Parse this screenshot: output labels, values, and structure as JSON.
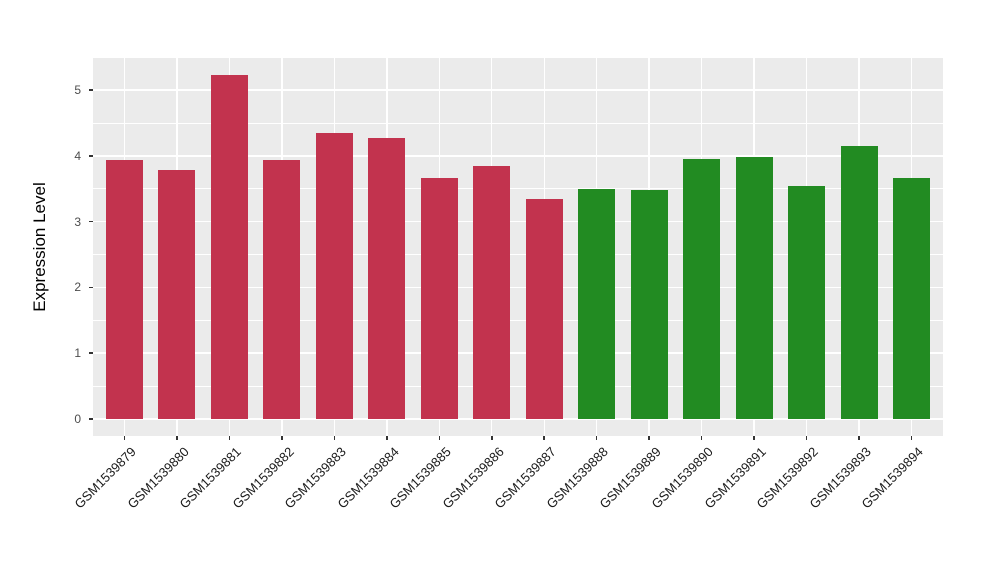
{
  "chart_data": {
    "type": "bar",
    "title": "",
    "xlabel": "",
    "ylabel": "Expression Level",
    "categories": [
      "GSM1539879",
      "GSM1539880",
      "GSM1539881",
      "GSM1539882",
      "GSM1539883",
      "GSM1539884",
      "GSM1539885",
      "GSM1539886",
      "GSM1539887",
      "GSM1539888",
      "GSM1539889",
      "GSM1539890",
      "GSM1539891",
      "GSM1539892",
      "GSM1539893",
      "GSM1539894"
    ],
    "values": [
      3.94,
      3.79,
      5.23,
      3.94,
      4.35,
      4.28,
      3.67,
      3.84,
      3.35,
      3.5,
      3.48,
      3.95,
      3.98,
      3.55,
      4.15,
      3.67
    ],
    "bar_groups": [
      "red",
      "red",
      "red",
      "red",
      "red",
      "red",
      "red",
      "red",
      "red",
      "green",
      "green",
      "green",
      "green",
      "green",
      "green",
      "green"
    ],
    "palette": {
      "red": "#C2334E",
      "green": "#228B22"
    },
    "y_ticks": [
      0,
      1,
      2,
      3,
      4,
      5
    ],
    "y_minor_ticks": [
      0.5,
      1.5,
      2.5,
      3.5,
      4.5
    ],
    "ylim": [
      0,
      5.49
    ],
    "x_tick_angle_deg": 45,
    "legend": "none",
    "style": {
      "panel_bg": "#EBEBEB",
      "grid_color": "#FFFFFF",
      "tick_color": "#333333",
      "y_tick_label_color": "#4D4D4D",
      "x_tick_label_color": "#1a1a1a",
      "axis_title_color": "#000000",
      "outer_bg": "#FFFFFF"
    }
  }
}
